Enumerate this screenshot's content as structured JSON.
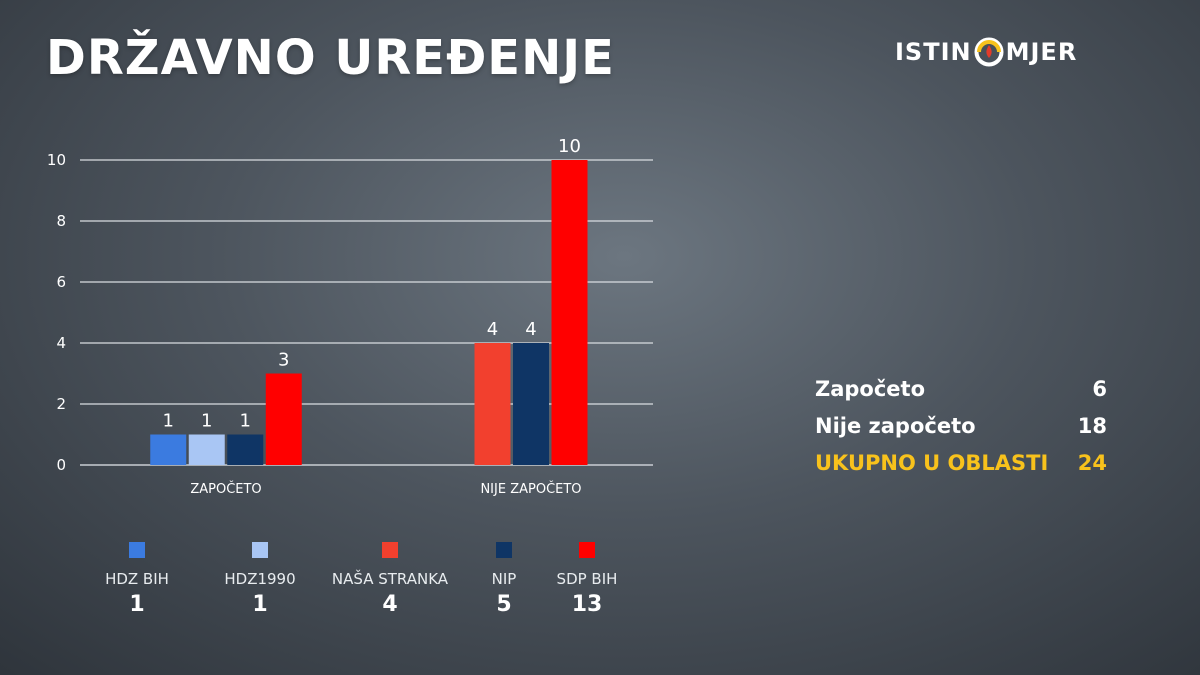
{
  "header": {
    "title": "DRŽAVNO UREĐENJE",
    "logo_left": "ISTIN",
    "logo_right": "MJER"
  },
  "colors": {
    "hdz_bih": "#3b7be0",
    "hdz1990": "#a9c6f4",
    "nasa_stranka": "#f2402e",
    "nip": "#0f3565",
    "sdp_bih": "#ff0000",
    "accent_total": "#f8c21c"
  },
  "chart_data": {
    "type": "bar",
    "categories": [
      "ZAPOČETO",
      "NIJE ZAPOČETO"
    ],
    "series": [
      {
        "name": "HDZ BIH",
        "color": "#3b7be0",
        "values": [
          1,
          null
        ]
      },
      {
        "name": "HDZ1990",
        "color": "#a9c6f4",
        "values": [
          1,
          null
        ]
      },
      {
        "name": "NIP",
        "color": "#0f3565",
        "values": [
          1,
          4
        ]
      },
      {
        "name": "SDP BIH",
        "color": "#ff0000",
        "values": [
          3,
          10
        ]
      },
      {
        "name": "NAŠA STRANKA",
        "color": "#f2402e",
        "values": [
          null,
          4
        ]
      }
    ],
    "ylim": [
      0,
      10
    ],
    "yticks": [
      0,
      2,
      4,
      6,
      8,
      10
    ],
    "grid": true,
    "legend_position": "bottom"
  },
  "legend": [
    {
      "name": "HDZ BIH",
      "total": "1",
      "color": "#3b7be0"
    },
    {
      "name": "HDZ1990",
      "total": "1",
      "color": "#a9c6f4"
    },
    {
      "name": "NAŠA STRANKA",
      "total": "4",
      "color": "#f2402e"
    },
    {
      "name": "NIP",
      "total": "5",
      "color": "#0f3565"
    },
    {
      "name": "SDP BIH",
      "total": "13",
      "color": "#ff0000"
    }
  ],
  "summary": {
    "started_label": "Započeto",
    "started_value": "6",
    "not_started_label": "Nije započeto",
    "not_started_value": "18",
    "total_label": "UKUPNO U OBLASTI",
    "total_value": "24"
  }
}
